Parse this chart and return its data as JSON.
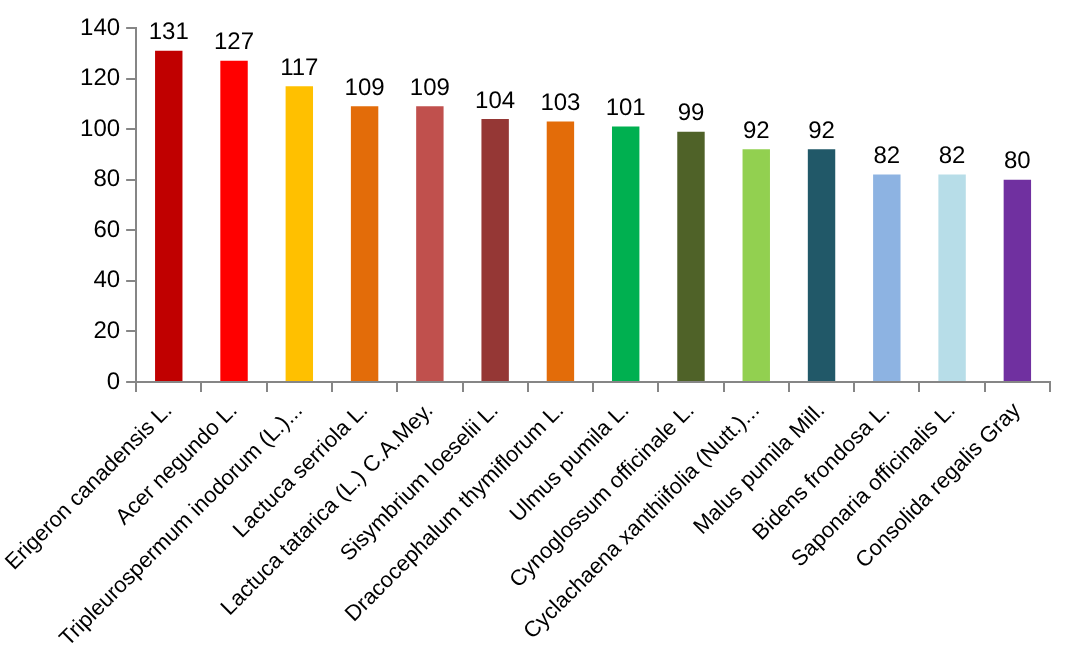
{
  "chart_data": {
    "type": "bar",
    "categories": [
      "Erigeron canadensis L.",
      "Acer negundo L.",
      "Tripleurospermum inodorum (L.)...",
      "Lactuca serriola L.",
      "Lactuca tatarica (L.) C.A.Mey.",
      "Sisymbrium loeselii L.",
      "Dracocephalum thymiflorum L.",
      "Ulmus pumila L.",
      "Cynoglossum officinale L.",
      "Cyclachaena xanthiifolia (Nutt.)...",
      "Malus pumila Mill.",
      "Bidens frondosa L.",
      "Saponaria officinalis L.",
      "Consolida regalis Gray"
    ],
    "values": [
      131,
      127,
      117,
      109,
      109,
      104,
      103,
      101,
      99,
      92,
      92,
      82,
      82,
      80
    ],
    "colors": [
      "#c00000",
      "#ff0000",
      "#ffc000",
      "#e36c09",
      "#c0504d",
      "#953735",
      "#e36c09",
      "#00b050",
      "#4f6228",
      "#92d050",
      "#215868",
      "#8db3e2",
      "#b7dde8",
      "#7030a0"
    ],
    "ylim": [
      0,
      140
    ],
    "yticks": [
      0,
      20,
      40,
      60,
      80,
      100,
      120,
      140
    ],
    "grid": false,
    "legend": false,
    "data_labels": true
  }
}
